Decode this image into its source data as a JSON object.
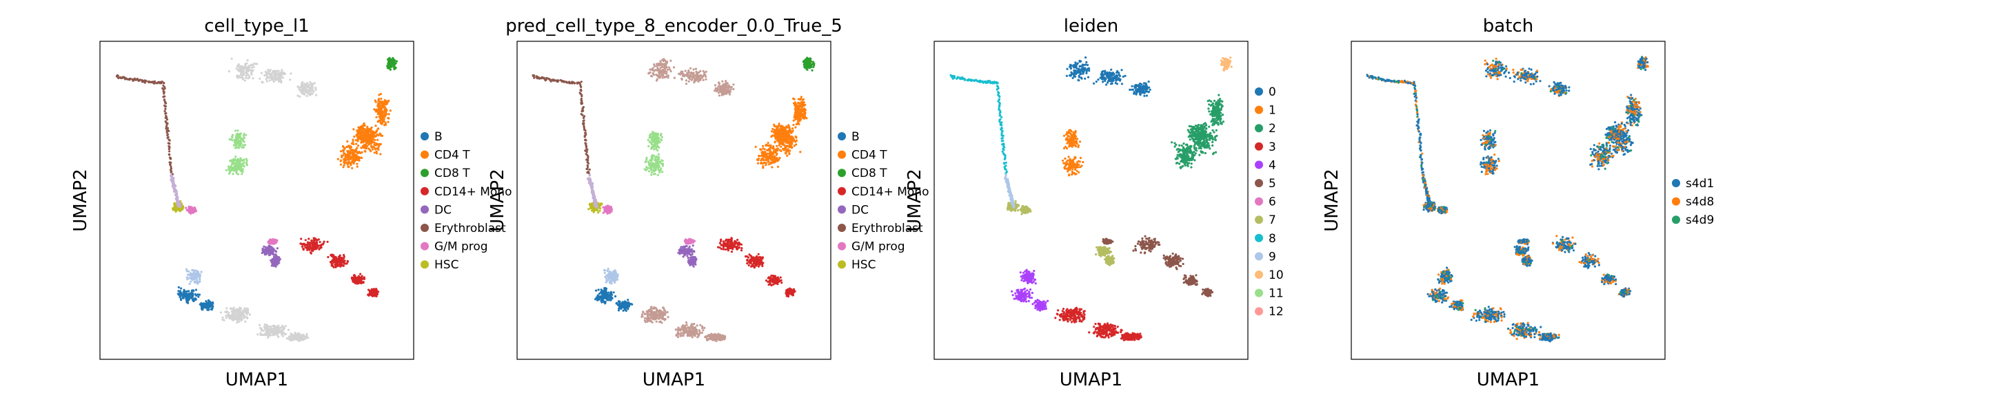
{
  "chart_data": [
    {
      "type": "scatter",
      "title": "cell_type_l1",
      "xlabel": "UMAP1",
      "ylabel": "UMAP2",
      "grid": false,
      "legend_position": "right",
      "legend": [
        {
          "label": "B",
          "color": "#1f77b4"
        },
        {
          "label": "CD4 T",
          "color": "#ff7f0e"
        },
        {
          "label": "CD8 T",
          "color": "#2ca02c"
        },
        {
          "label": "CD14+ Mono",
          "color": "#d62728"
        },
        {
          "label": "DC",
          "color": "#9467bd"
        },
        {
          "label": "Erythroblast",
          "color": "#8c564b"
        },
        {
          "label": "G/M prog",
          "color": "#e377c2"
        },
        {
          "label": "HSC",
          "color": "#bcbd22"
        }
      ]
    },
    {
      "type": "scatter",
      "title": "pred_cell_type_8_encoder_0.0_True_5",
      "xlabel": "UMAP1",
      "ylabel": "UMAP2",
      "grid": false,
      "legend_position": "right",
      "legend": [
        {
          "label": "B",
          "color": "#1f77b4"
        },
        {
          "label": "CD4 T",
          "color": "#ff7f0e"
        },
        {
          "label": "CD8 T",
          "color": "#2ca02c"
        },
        {
          "label": "CD14+ Mono",
          "color": "#d62728"
        },
        {
          "label": "DC",
          "color": "#9467bd"
        },
        {
          "label": "Erythroblast",
          "color": "#8c564b"
        },
        {
          "label": "G/M prog",
          "color": "#e377c2"
        },
        {
          "label": "HSC",
          "color": "#bcbd22"
        }
      ]
    },
    {
      "type": "scatter",
      "title": "leiden",
      "xlabel": "UMAP1",
      "ylabel": "UMAP2",
      "grid": false,
      "legend_position": "right",
      "legend": [
        {
          "label": "0",
          "color": "#1f77b4"
        },
        {
          "label": "1",
          "color": "#ff7f0e"
        },
        {
          "label": "2",
          "color": "#279e68"
        },
        {
          "label": "3",
          "color": "#d62728"
        },
        {
          "label": "4",
          "color": "#aa40fc"
        },
        {
          "label": "5",
          "color": "#8c564b"
        },
        {
          "label": "6",
          "color": "#e377c2"
        },
        {
          "label": "7",
          "color": "#b5bd61"
        },
        {
          "label": "8",
          "color": "#17becf"
        },
        {
          "label": "9",
          "color": "#aec7e8"
        },
        {
          "label": "10",
          "color": "#ffbb78"
        },
        {
          "label": "11",
          "color": "#98df8a"
        },
        {
          "label": "12",
          "color": "#ff9896"
        }
      ]
    },
    {
      "type": "scatter",
      "title": "batch",
      "xlabel": "UMAP1",
      "ylabel": "UMAP2",
      "grid": false,
      "legend_position": "right",
      "legend": [
        {
          "label": "s4d1",
          "color": "#1f77b4"
        },
        {
          "label": "s4d8",
          "color": "#ff7f0e"
        },
        {
          "label": "s4d9",
          "color": "#279e68"
        }
      ]
    }
  ]
}
